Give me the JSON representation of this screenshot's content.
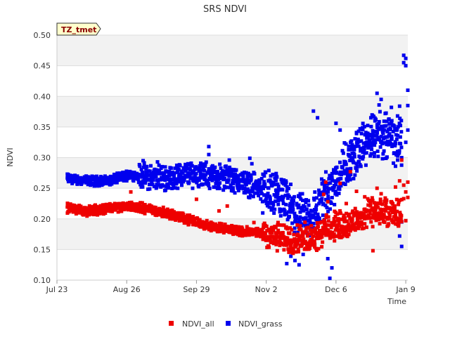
{
  "chart_data": {
    "type": "scatter",
    "title": "SRS NDVI",
    "tag": "TZ_tmet",
    "xlabel": "Time",
    "ylabel": "NDVI",
    "x_unit": "days since Jul 23",
    "xlim": [
      0,
      171
    ],
    "ylim": [
      0.1,
      0.5
    ],
    "x_ticks": [
      {
        "label": "Jul 23",
        "value": 0
      },
      {
        "label": "Aug 26",
        "value": 34
      },
      {
        "label": "Sep 29",
        "value": 68
      },
      {
        "label": "Nov 2",
        "value": 102
      },
      {
        "label": "Dec 6",
        "value": 136
      },
      {
        "label": "Jan 9",
        "value": 170
      }
    ],
    "y_ticks": [
      "0.10",
      "0.15",
      "0.20",
      "0.25",
      "0.30",
      "0.35",
      "0.40",
      "0.45",
      "0.50"
    ],
    "legend": [
      {
        "name": "NDVI_all",
        "color": "#ee0000"
      },
      {
        "name": "NDVI_grass",
        "color": "#0000ee"
      }
    ],
    "series": [
      {
        "name": "NDVI_all",
        "color": "#ee0000",
        "trend_x": [
          5,
          15,
          25,
          35,
          45,
          55,
          65,
          75,
          85,
          95,
          105,
          112,
          118,
          125,
          132,
          140,
          148,
          155,
          162,
          168
        ],
        "trend_y": [
          0.218,
          0.212,
          0.218,
          0.221,
          0.216,
          0.208,
          0.198,
          0.188,
          0.182,
          0.178,
          0.173,
          0.167,
          0.168,
          0.172,
          0.185,
          0.19,
          0.2,
          0.215,
          0.205,
          0.21
        ],
        "points": [
          [
            36,
            0.244
          ],
          [
            68,
            0.232
          ],
          [
            79,
            0.213
          ],
          [
            83,
            0.221
          ],
          [
            96,
            0.194
          ],
          [
            124,
            0.176
          ],
          [
            130,
            0.24
          ],
          [
            131,
            0.26
          ],
          [
            132,
            0.228
          ],
          [
            135,
            0.19
          ],
          [
            138,
            0.258
          ],
          [
            141,
            0.225
          ],
          [
            143,
            0.277
          ],
          [
            146,
            0.245
          ],
          [
            148,
            0.21
          ],
          [
            150,
            0.192
          ],
          [
            150,
            0.236
          ],
          [
            152,
            0.23
          ],
          [
            154,
            0.148
          ],
          [
            156,
            0.25
          ],
          [
            158,
            0.241
          ],
          [
            160,
            0.234
          ],
          [
            161,
            0.188
          ],
          [
            163,
            0.228
          ],
          [
            165,
            0.252
          ],
          [
            166,
            0.191
          ],
          [
            167,
            0.262
          ],
          [
            168,
            0.296
          ],
          [
            169,
            0.233
          ],
          [
            169,
            0.255
          ],
          [
            170,
            0.244
          ],
          [
            170,
            0.197
          ],
          [
            171,
            0.235
          ],
          [
            171,
            0.26
          ]
        ]
      },
      {
        "name": "NDVI_grass",
        "color": "#0000ee",
        "trend_x": [
          5,
          15,
          25,
          35,
          45,
          55,
          65,
          75,
          85,
          95,
          105,
          112,
          118,
          125,
          132,
          140,
          148,
          155,
          162,
          168
        ],
        "trend_y": [
          0.266,
          0.262,
          0.262,
          0.272,
          0.268,
          0.266,
          0.274,
          0.27,
          0.266,
          0.256,
          0.24,
          0.225,
          0.2,
          0.205,
          0.245,
          0.285,
          0.315,
          0.335,
          0.34,
          0.33
        ],
        "points": [
          [
            42,
            0.295
          ],
          [
            49,
            0.293
          ],
          [
            60,
            0.287
          ],
          [
            74,
            0.318
          ],
          [
            74,
            0.305
          ],
          [
            84,
            0.296
          ],
          [
            94,
            0.299
          ],
          [
            95,
            0.29
          ],
          [
            108,
            0.253
          ],
          [
            110,
            0.169
          ],
          [
            112,
            0.127
          ],
          [
            114,
            0.139
          ],
          [
            116,
            0.132
          ],
          [
            118,
            0.125
          ],
          [
            120,
            0.142
          ],
          [
            125,
            0.376
          ],
          [
            127,
            0.365
          ],
          [
            129,
            0.265
          ],
          [
            130,
            0.262
          ],
          [
            132,
            0.135
          ],
          [
            133,
            0.103
          ],
          [
            134,
            0.12
          ],
          [
            136,
            0.356
          ],
          [
            138,
            0.345
          ],
          [
            140,
            0.274
          ],
          [
            142,
            0.305
          ],
          [
            144,
            0.318
          ],
          [
            146,
            0.341
          ],
          [
            148,
            0.315
          ],
          [
            149,
            0.298
          ],
          [
            151,
            0.332
          ],
          [
            153,
            0.365
          ],
          [
            155,
            0.36
          ],
          [
            156,
            0.405
          ],
          [
            157,
            0.386
          ],
          [
            158,
            0.395
          ],
          [
            159,
            0.34
          ],
          [
            160,
            0.372
          ],
          [
            161,
            0.325
          ],
          [
            162,
            0.355
          ],
          [
            163,
            0.382
          ],
          [
            163,
            0.33
          ],
          [
            164,
            0.291
          ],
          [
            165,
            0.345
          ],
          [
            166,
            0.31
          ],
          [
            166,
            0.368
          ],
          [
            167,
            0.384
          ],
          [
            167,
            0.172
          ],
          [
            168,
            0.155
          ],
          [
            168,
            0.195
          ],
          [
            169,
            0.467
          ],
          [
            169,
            0.455
          ],
          [
            170,
            0.45
          ],
          [
            170,
            0.462
          ],
          [
            171,
            0.41
          ],
          [
            171,
            0.385
          ],
          [
            171,
            0.345
          ],
          [
            170,
            0.325
          ],
          [
            168,
            0.3
          ],
          [
            165,
            0.286
          ]
        ]
      }
    ]
  }
}
